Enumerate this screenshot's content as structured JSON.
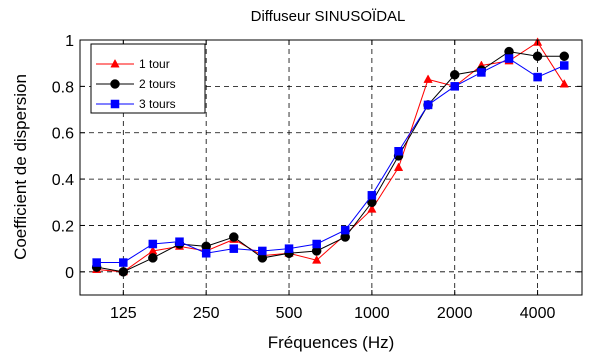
{
  "chart_data": {
    "type": "line",
    "title": "Diffuseur SINUSOÏDAL",
    "xlabel": "Fréquences (Hz)",
    "ylabel": "Coefficient de dispersion",
    "x_scale": "log",
    "x": [
      100,
      125,
      160,
      200,
      250,
      315,
      400,
      500,
      630,
      800,
      1000,
      1250,
      1600,
      2000,
      2500,
      3150,
      4000,
      5000
    ],
    "x_ticks": [
      125,
      250,
      500,
      1000,
      2000,
      4000
    ],
    "x_tick_labels": [
      "125",
      "250",
      "500",
      "1000",
      "2000",
      "4000"
    ],
    "y_ticks": [
      0,
      0.2,
      0.4,
      0.6,
      0.8,
      1
    ],
    "y_tick_labels": [
      "0",
      "0.2",
      "0.4",
      "0.6",
      "0.8",
      "1"
    ],
    "ylim": [
      -0.1,
      1.0
    ],
    "grid": true,
    "legend_position": "top-left",
    "series": [
      {
        "name": "1 tour",
        "color": "#ff0000",
        "marker": "triangle",
        "values": [
          0.01,
          0.0,
          0.09,
          0.11,
          0.09,
          0.14,
          0.07,
          0.08,
          0.05,
          0.16,
          0.27,
          0.45,
          0.83,
          0.8,
          0.89,
          0.91,
          0.99,
          0.81
        ]
      },
      {
        "name": "2 tours",
        "color": "#000000",
        "marker": "circle",
        "values": [
          0.02,
          0.0,
          0.06,
          0.12,
          0.11,
          0.15,
          0.06,
          0.08,
          0.09,
          0.15,
          0.3,
          0.5,
          0.72,
          0.85,
          0.87,
          0.95,
          0.93,
          0.93
        ]
      },
      {
        "name": "3 tours",
        "color": "#0000ff",
        "marker": "square",
        "values": [
          0.04,
          0.04,
          0.12,
          0.13,
          0.08,
          0.1,
          0.09,
          0.1,
          0.12,
          0.18,
          0.33,
          0.52,
          0.72,
          0.8,
          0.86,
          0.92,
          0.84,
          0.89
        ]
      }
    ]
  }
}
